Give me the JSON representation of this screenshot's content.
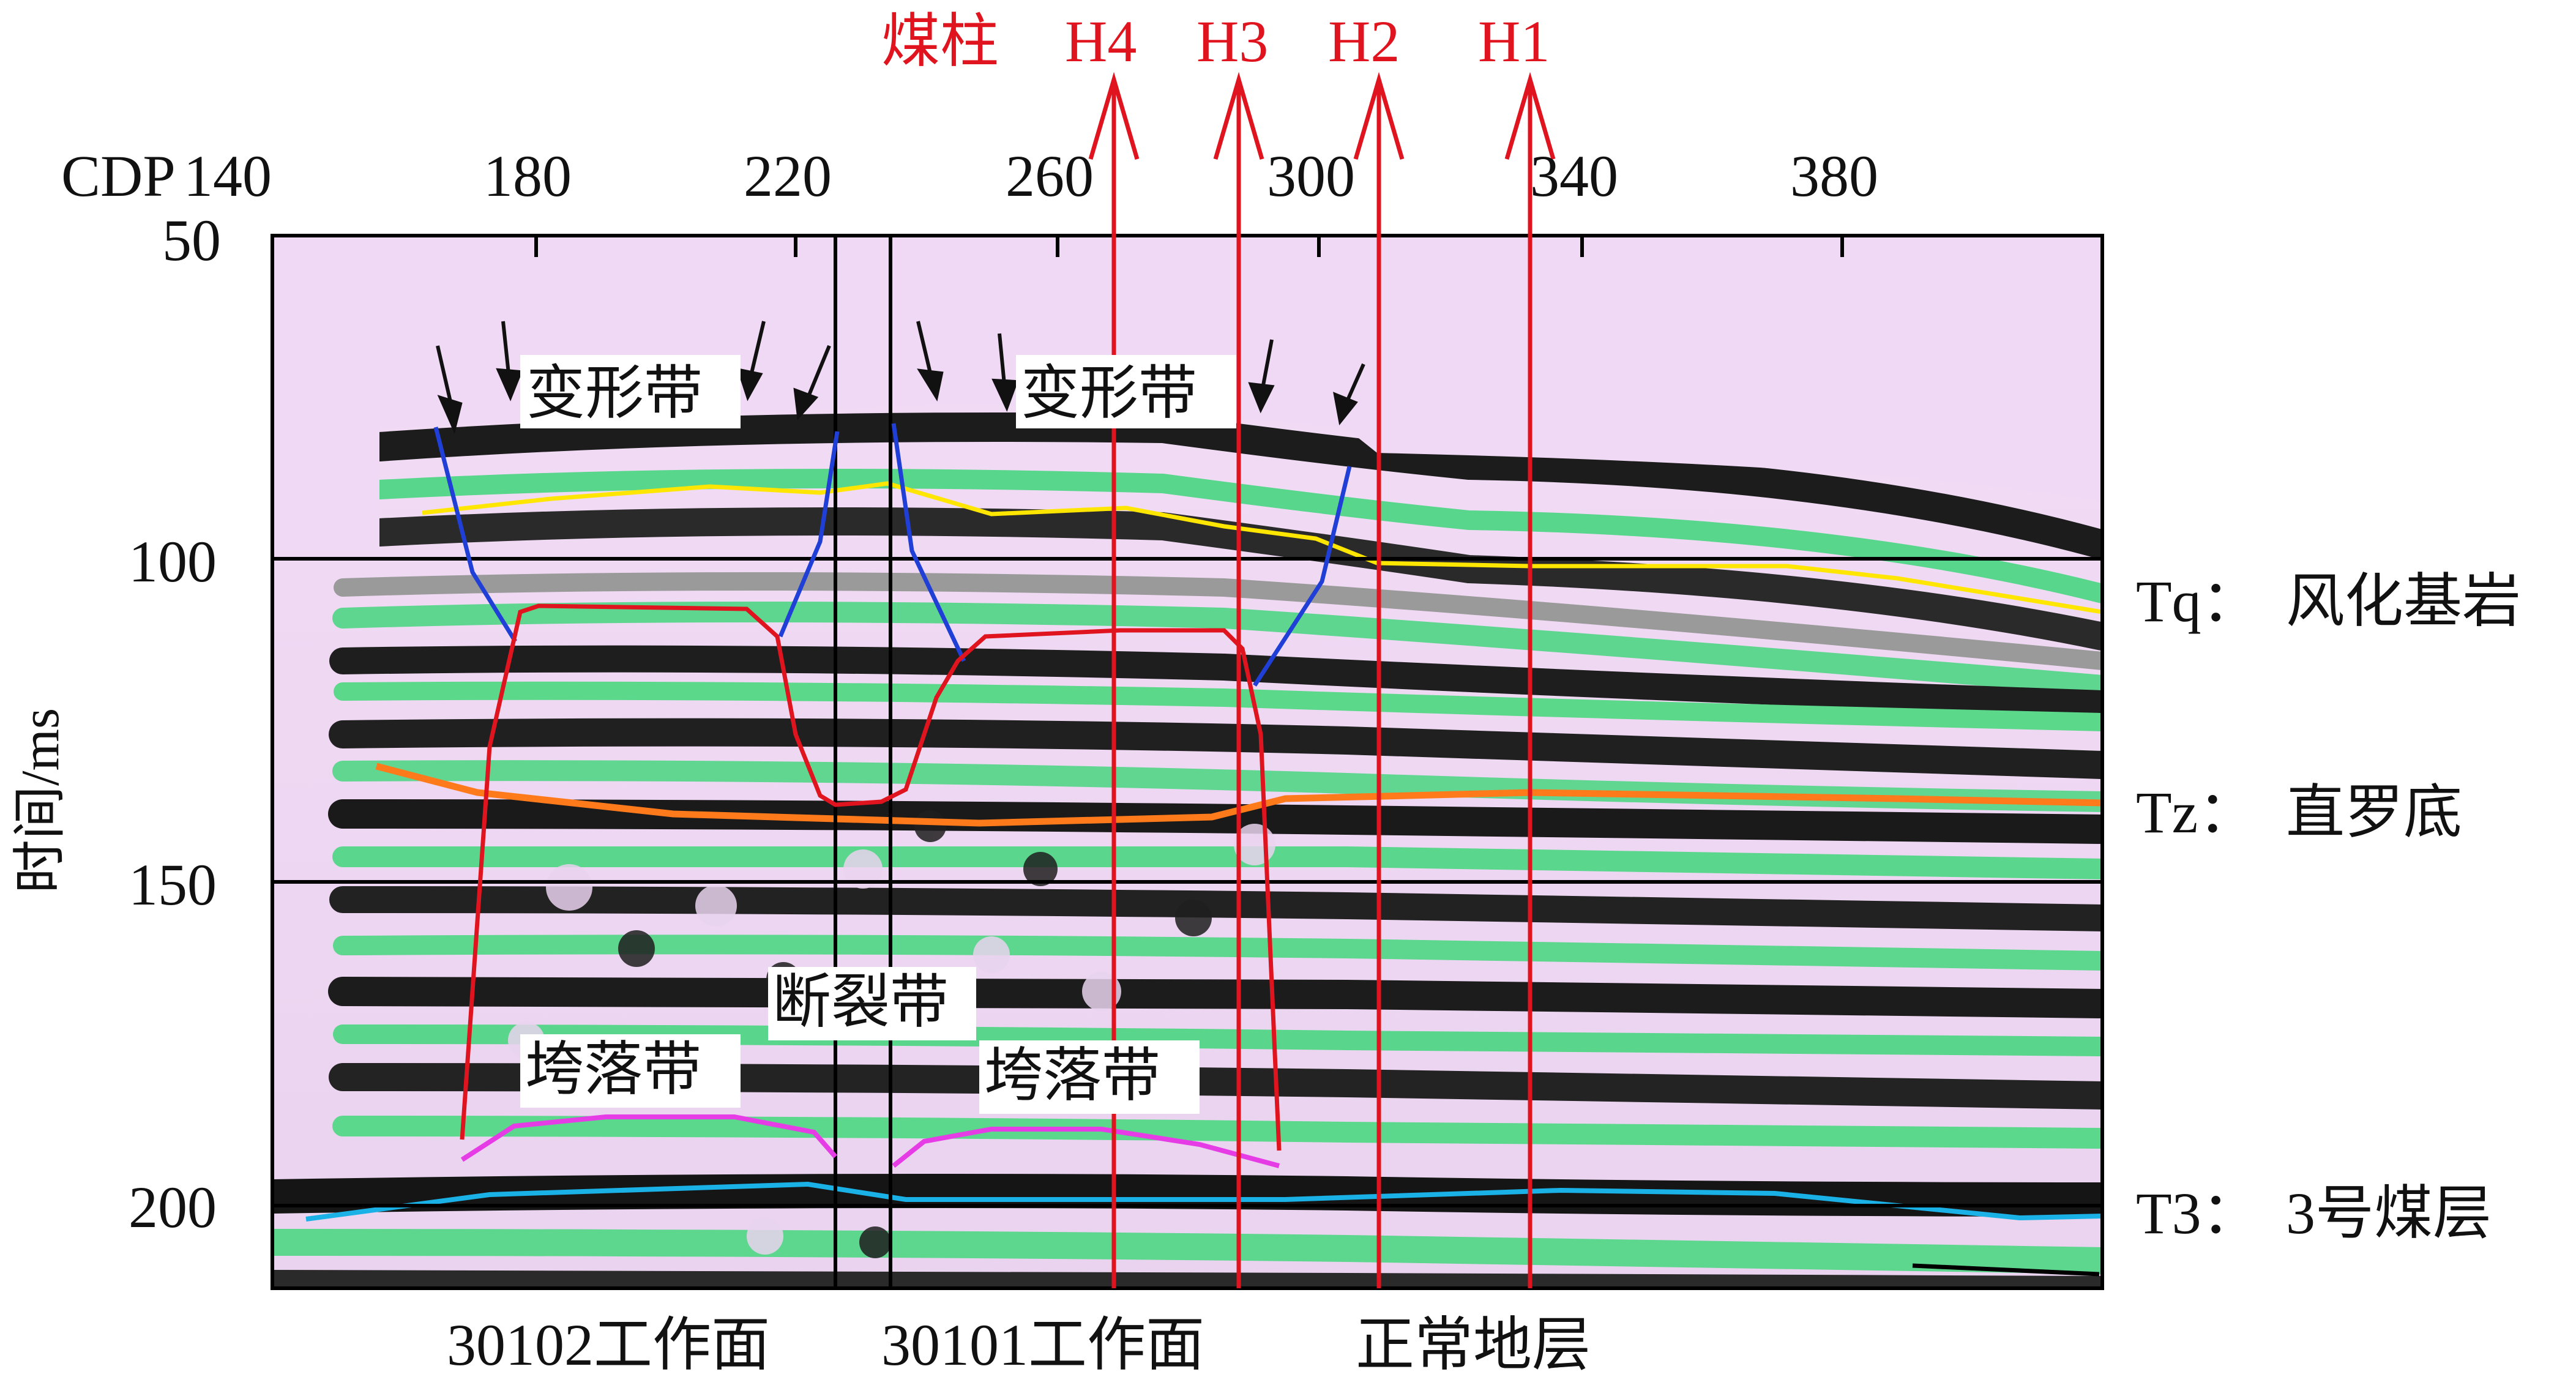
{
  "figure": {
    "cdp_axis": {
      "prefix": "CDP",
      "ticks": [
        "140",
        "180",
        "220",
        "260",
        "300",
        "340",
        "380"
      ]
    },
    "time_axis": {
      "label": "时间/ms",
      "ticks": [
        "50",
        "100",
        "150",
        "200"
      ]
    },
    "top_markers": [
      "煤柱",
      "H4",
      "H3",
      "H2",
      "H1"
    ],
    "zone_labels": {
      "deform_left": "变形带",
      "deform_right": "变形带",
      "fracture": "断裂带",
      "collapse_left": "垮落带",
      "collapse_right": "垮落带"
    },
    "horizons": [
      {
        "code": "Tq：",
        "name": "风化基岩",
        "color": "#ffe600"
      },
      {
        "code": "Tz：",
        "name": "直罗底",
        "color": "#ff7a1a"
      },
      {
        "code": "T3：",
        "name": "3号煤层",
        "color": "#1ab2e6"
      }
    ],
    "bottom_labels": [
      "30102工作面",
      "30101工作面",
      "正常地层"
    ],
    "colors": {
      "marker_red": "#e0141e",
      "collapse_outline": "#e0141e",
      "deform_boundary": "#1f3fd6",
      "collapse_top": "#e63ce6",
      "background_lavender": "#efd6f2",
      "event_green": "#59d98c"
    }
  }
}
